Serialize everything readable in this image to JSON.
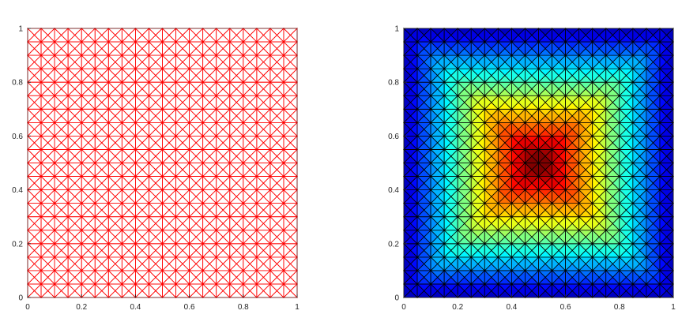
{
  "chart_data": [
    {
      "type": "mesh",
      "title": "",
      "xlabel": "",
      "ylabel": "",
      "xlim": [
        0,
        1
      ],
      "ylim": [
        0,
        1
      ],
      "x_ticks": [
        "0",
        "0.2",
        "0.4",
        "0.6",
        "0.8",
        "1"
      ],
      "y_ticks": [
        "0",
        "0.2",
        "0.4",
        "0.6",
        "0.8",
        "1"
      ],
      "grid_divisions": 20,
      "edge_color": "#ff0000",
      "fill": "none"
    },
    {
      "type": "heatmap",
      "title": "",
      "xlabel": "",
      "ylabel": "",
      "xlim": [
        0,
        1
      ],
      "ylim": [
        0,
        1
      ],
      "x_ticks": [
        "0",
        "0.2",
        "0.4",
        "0.6",
        "0.8",
        "1"
      ],
      "y_ticks": [
        "0",
        "0.2",
        "0.4",
        "0.6",
        "0.8",
        "1"
      ],
      "grid_divisions": 20,
      "edge_color": "#000000",
      "colormap": "jet",
      "value_range": [
        0,
        1
      ],
      "field": "peak at (0.5, 0.5), decreasing radially to the boundary"
    }
  ]
}
